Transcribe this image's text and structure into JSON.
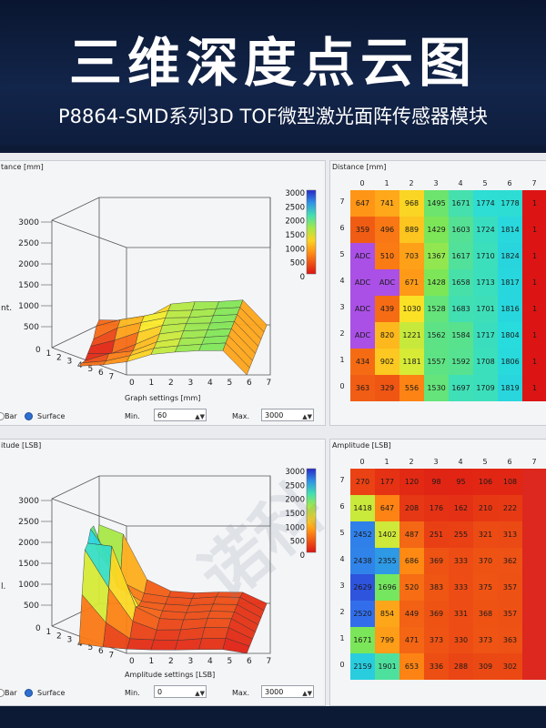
{
  "header": {
    "title": "三维深度点云图",
    "subtitle": "P8864-SMD系列3D TOF微型激光面阵传感器模块"
  },
  "watermark": "诺科",
  "distance_plot": {
    "title": "tance [mm]",
    "zlabel": "nt.",
    "z_ticks": [
      "3000",
      "2500",
      "2000",
      "1500",
      "1000",
      "500"
    ],
    "axis_ticks": [
      "0",
      "1",
      "2",
      "3",
      "4",
      "5",
      "6",
      "7"
    ],
    "colorbar_ticks": [
      "3000",
      "2500",
      "2000",
      "1500",
      "1000",
      "500",
      "0"
    ]
  },
  "distance_settings": {
    "title": "Graph settings [mm]",
    "min_label": "Min.",
    "min_value": "60",
    "max_label": "Max.",
    "max_value": "3000",
    "bar_label": "Bar",
    "surface_label": "Surface"
  },
  "distance_table": {
    "title": "Distance [mm]",
    "cols": [
      "0",
      "1",
      "2",
      "3",
      "4",
      "5",
      "6",
      "7"
    ],
    "rows": [
      {
        "label": "7",
        "cells": [
          "647",
          "741",
          "968",
          "1495",
          "1671",
          "1774",
          "1778",
          "1"
        ]
      },
      {
        "label": "6",
        "cells": [
          "359",
          "496",
          "889",
          "1429",
          "1603",
          "1724",
          "1814",
          "1"
        ]
      },
      {
        "label": "5",
        "cells": [
          "ADC",
          "510",
          "703",
          "1367",
          "1617",
          "1710",
          "1824",
          "1"
        ]
      },
      {
        "label": "4",
        "cells": [
          "ADC",
          "ADC",
          "671",
          "1428",
          "1658",
          "1713",
          "1817",
          "1"
        ]
      },
      {
        "label": "3",
        "cells": [
          "ADC",
          "439",
          "1030",
          "1528",
          "1683",
          "1701",
          "1816",
          "1"
        ]
      },
      {
        "label": "2",
        "cells": [
          "ADC",
          "820",
          "1221",
          "1562",
          "1584",
          "1717",
          "1804",
          "1"
        ]
      },
      {
        "label": "1",
        "cells": [
          "434",
          "902",
          "1181",
          "1557",
          "1592",
          "1708",
          "1806",
          "1"
        ]
      },
      {
        "label": "0",
        "cells": [
          "363",
          "329",
          "556",
          "1530",
          "1697",
          "1709",
          "1819",
          "1"
        ]
      }
    ]
  },
  "amplitude_plot": {
    "title": "itude [LSB]",
    "zlabel": "l.",
    "z_ticks": [
      "3000",
      "2500",
      "2000",
      "1500",
      "1000",
      "500"
    ],
    "axis_ticks": [
      "0",
      "1",
      "2",
      "3",
      "4",
      "5",
      "6",
      "7"
    ],
    "colorbar_ticks": [
      "3000",
      "2500",
      "2000",
      "1500",
      "1000",
      "500",
      "0"
    ]
  },
  "amplitude_settings": {
    "title": "Amplitude settings [LSB]",
    "min_label": "Min.",
    "min_value": "0",
    "max_label": "Max.",
    "max_value": "3000",
    "bar_label": "Bar",
    "surface_label": "Surface"
  },
  "amplitude_table": {
    "title": "Amplitude [LSB]",
    "cols": [
      "0",
      "1",
      "2",
      "3",
      "4",
      "5",
      "6",
      "7"
    ],
    "rows": [
      {
        "label": "7",
        "cells": [
          "270",
          "177",
          "120",
          "98",
          "95",
          "106",
          "108",
          ""
        ]
      },
      {
        "label": "6",
        "cells": [
          "1418",
          "647",
          "208",
          "176",
          "162",
          "210",
          "222",
          ""
        ]
      },
      {
        "label": "5",
        "cells": [
          "2452",
          "1402",
          "487",
          "251",
          "255",
          "321",
          "313",
          ""
        ]
      },
      {
        "label": "4",
        "cells": [
          "2438",
          "2355",
          "686",
          "369",
          "333",
          "370",
          "362",
          ""
        ]
      },
      {
        "label": "3",
        "cells": [
          "2629",
          "1696",
          "520",
          "383",
          "333",
          "375",
          "357",
          ""
        ]
      },
      {
        "label": "2",
        "cells": [
          "2520",
          "854",
          "449",
          "369",
          "331",
          "368",
          "357",
          ""
        ]
      },
      {
        "label": "1",
        "cells": [
          "1671",
          "799",
          "471",
          "373",
          "330",
          "373",
          "363",
          ""
        ]
      },
      {
        "label": "0",
        "cells": [
          "2159",
          "1901",
          "653",
          "336",
          "288",
          "309",
          "302",
          ""
        ]
      }
    ]
  }
}
